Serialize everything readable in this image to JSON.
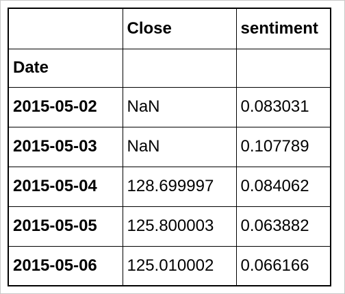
{
  "table": {
    "columns": [
      "",
      "Close",
      "sentiment"
    ],
    "index_name": "Date",
    "rows": [
      {
        "date": "2015-05-02",
        "close": "NaN",
        "sentiment": "0.083031"
      },
      {
        "date": "2015-05-03",
        "close": "NaN",
        "sentiment": "0.107789"
      },
      {
        "date": "2015-05-04",
        "close": "128.699997",
        "sentiment": "0.084062"
      },
      {
        "date": "2015-05-05",
        "close": "125.800003",
        "sentiment": "0.063882"
      },
      {
        "date": "2015-05-06",
        "close": "125.010002",
        "sentiment": "0.066166"
      }
    ]
  }
}
